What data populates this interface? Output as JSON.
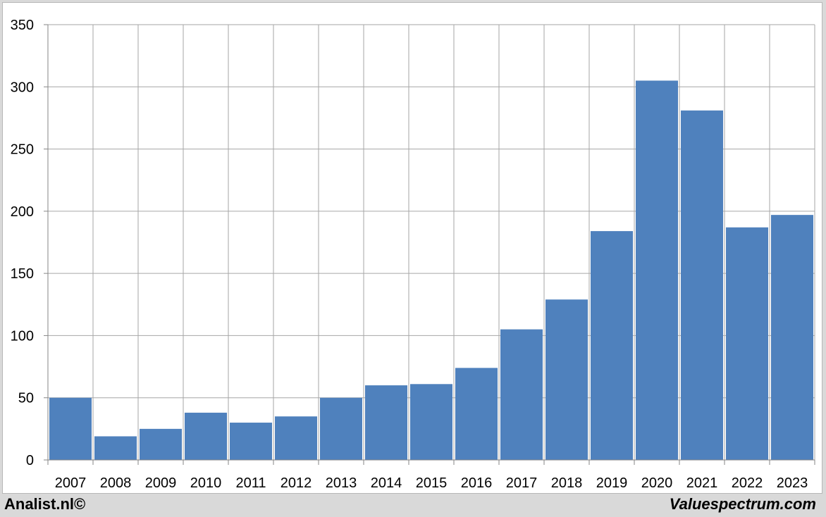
{
  "footer": {
    "left_text": "Analist.nl©",
    "right_text": "Valuespectrum.com"
  },
  "colors": {
    "bar": "#4f81bd",
    "grid": "#a6a6a6",
    "axis": "#868686"
  },
  "chart_data": {
    "type": "bar",
    "categories": [
      "2007",
      "2008",
      "2009",
      "2010",
      "2011",
      "2012",
      "2013",
      "2014",
      "2015",
      "2016",
      "2017",
      "2018",
      "2019",
      "2020",
      "2021",
      "2022",
      "2023"
    ],
    "values": [
      50,
      19,
      25,
      38,
      30,
      35,
      50,
      60,
      61,
      74,
      105,
      129,
      184,
      305,
      281,
      187,
      197
    ],
    "ylim": [
      0,
      350
    ],
    "yticks": [
      0,
      50,
      100,
      150,
      200,
      250,
      300,
      350
    ],
    "grid": true,
    "legend": "none"
  }
}
